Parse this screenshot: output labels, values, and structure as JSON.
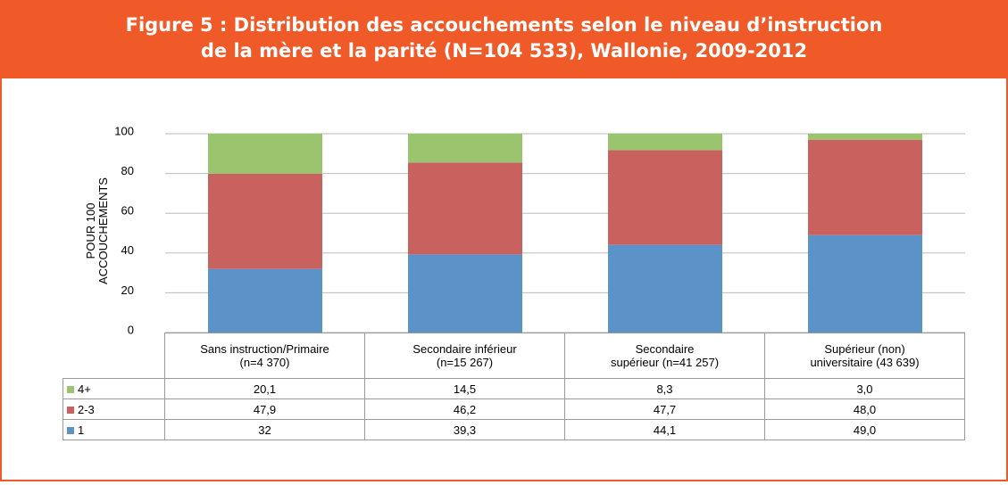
{
  "chart_data": {
    "type": "stacked_bar",
    "title": "Figure 5 : Distribution des accouchements selon le niveau d’instruction\nde la mère et la parité (N=104 533), Wallonie, 2009-2012",
    "y_label": "POUR 100\nACCOUCHEMENTS",
    "categories": [
      "Sans instruction/Primaire\n(n=4 370)",
      "Secondaire inférieur\n(n=15 267)",
      "Secondaire\nsupérieur (n=41 257)",
      "Supérieur (non)\nuniversitaire (43 639)"
    ],
    "series": [
      {
        "name": "1",
        "color": "#5b93c8",
        "values": [
          32,
          39.3,
          44.1,
          49.0
        ],
        "value_labels": [
          "32",
          "39,3",
          "44,1",
          "49,0"
        ]
      },
      {
        "name": "2-3",
        "color": "#c9625f",
        "values": [
          47.9,
          46.2,
          47.7,
          48.0
        ],
        "value_labels": [
          "47,9",
          "46,2",
          "47,7",
          "48,0"
        ]
      },
      {
        "name": "4+",
        "color": "#9bc46e",
        "values": [
          20.1,
          14.5,
          8.3,
          3.0
        ],
        "value_labels": [
          "20,1",
          "14,5",
          "8,3",
          "3,0"
        ]
      }
    ],
    "ylim": [
      0,
      100
    ],
    "yticks": [
      0,
      20,
      40,
      60,
      80,
      100
    ],
    "grid": true
  }
}
